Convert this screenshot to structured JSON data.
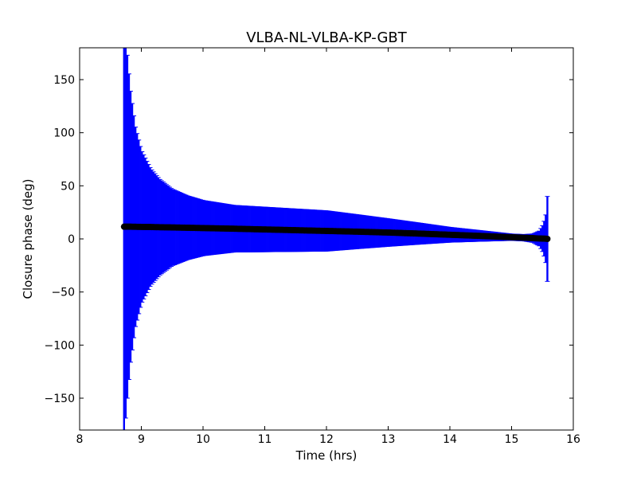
{
  "chart_data": {
    "type": "scatter",
    "title": "VLBA-NL-VLBA-KP-GBT",
    "xlabel": "Time (hrs)",
    "ylabel": "Closure phase (deg)",
    "xlim": [
      8,
      16
    ],
    "ylim": [
      -180,
      180
    ],
    "xticks": [
      8,
      9,
      10,
      11,
      12,
      13,
      14,
      15,
      16
    ],
    "xtick_labels": [
      "8",
      "9",
      "10",
      "11",
      "12",
      "13",
      "14",
      "15",
      "16"
    ],
    "yticks": [
      -150,
      -100,
      -50,
      0,
      50,
      100,
      150
    ],
    "ytick_labels": [
      "−150",
      "−100",
      "−50",
      "0",
      "50",
      "100",
      "150"
    ],
    "grid": false,
    "legend": "none",
    "series": [
      {
        "marker_color": "#000000",
        "errorbar_color": "#0000ff",
        "x": [
          8.72,
          8.76,
          8.82,
          8.9,
          9.0,
          9.15,
          9.3,
          9.5,
          9.75,
          10.0,
          10.5,
          11.0,
          11.5,
          12.0,
          12.5,
          13.0,
          13.5,
          14.0,
          14.5,
          15.0,
          15.2,
          15.35,
          15.45,
          15.5,
          15.55,
          15.58
        ],
        "y": [
          11.5,
          11.5,
          11.5,
          11.4,
          11.3,
          11.2,
          11.0,
          10.8,
          10.5,
          10.2,
          9.6,
          8.9,
          8.2,
          7.5,
          6.8,
          6.0,
          5.0,
          3.9,
          2.8,
          1.6,
          1.1,
          0.7,
          0.4,
          0.3,
          0.2,
          0.0
        ],
        "yerr": [
          200,
          170,
          130,
          95,
          72,
          55,
          45,
          36,
          30,
          26,
          22,
          21,
          20,
          19,
          16,
          13,
          10,
          7,
          5,
          3,
          3,
          4,
          7,
          12,
          20,
          40
        ]
      }
    ]
  }
}
